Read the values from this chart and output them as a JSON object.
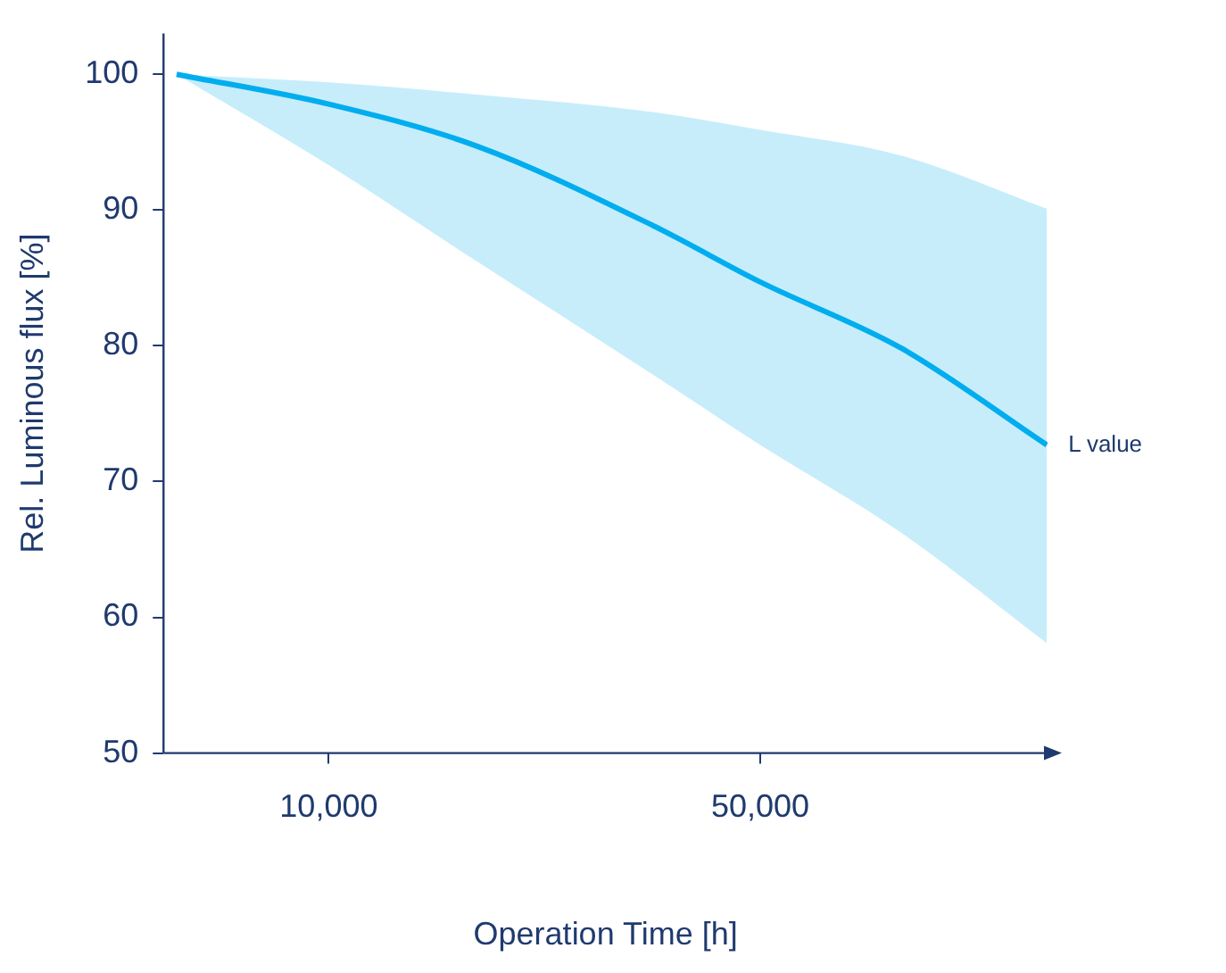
{
  "chart_data": {
    "type": "line",
    "xlabel": "Operation Time [h]",
    "ylabel": "Rel. Luminous flux [%]",
    "log": "x",
    "xlim": [
      5400,
      146000
    ],
    "xticks": [
      {
        "value": 10000,
        "label": "10,000"
      },
      {
        "value": 50000,
        "label": "50,000"
      }
    ],
    "ylim": [
      50,
      103
    ],
    "yticks": [
      50,
      60,
      70,
      80,
      90,
      100
    ],
    "grid": false,
    "legend": false,
    "marker": "none",
    "line_style": "solid",
    "series": [
      {
        "color": "#00aeef",
        "x": [
          5670,
          10000,
          17400,
          33700,
          50000,
          84800,
          145600
        ],
        "values": [
          100,
          97.8,
          94.7,
          88.8,
          84.7,
          79.8,
          72.7
        ],
        "lower": [
          100,
          93.3,
          86.2,
          77.8,
          72.7,
          66.2,
          58.1
        ],
        "upper": [
          100,
          99.4,
          98.5,
          97.2,
          95.9,
          94,
          90.1
        ]
      }
    ],
    "annotations": [
      {
        "text": "L value",
        "x": 145600,
        "y": 72.7
      }
    ]
  }
}
